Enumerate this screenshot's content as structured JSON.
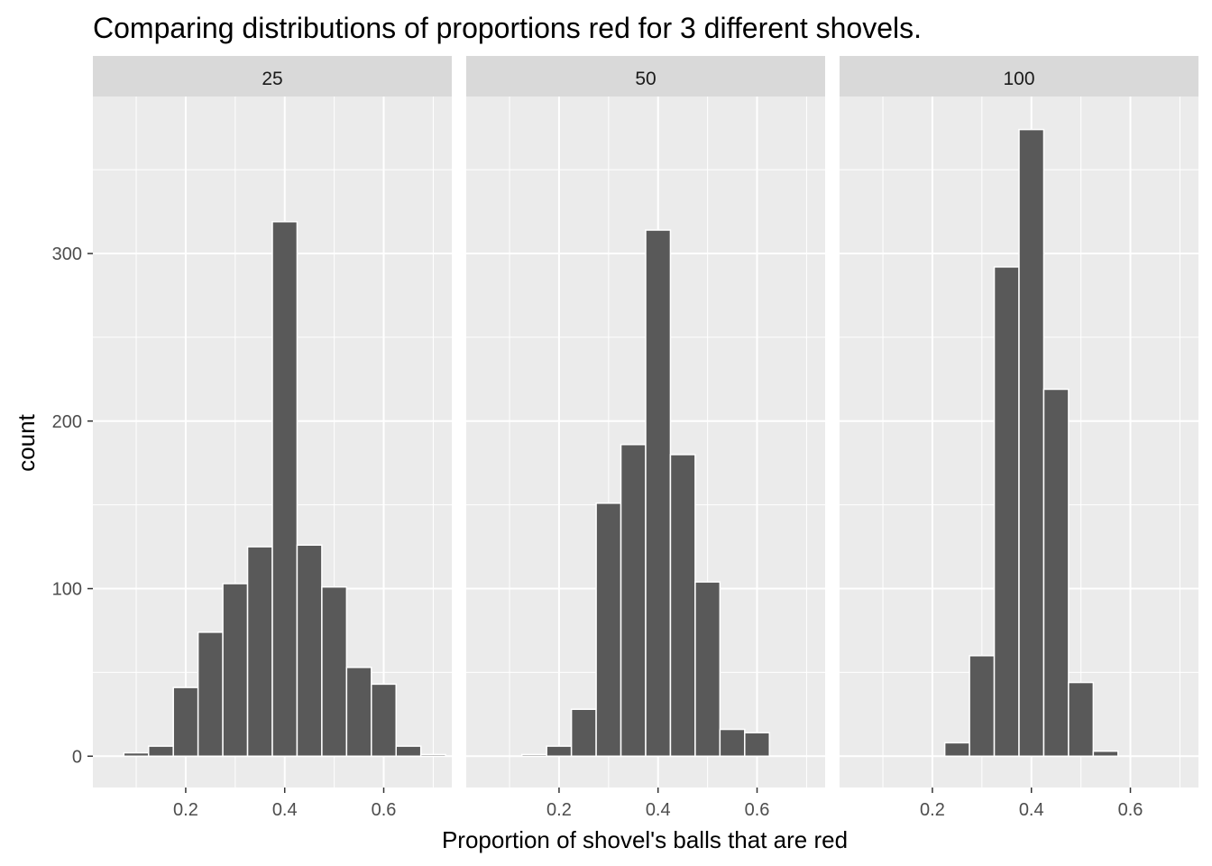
{
  "chart_data": {
    "type": "bar",
    "title": "Comparing distributions of proportions red for 3 different shovels.",
    "xlabel": "Proportion of shovel's balls that are red",
    "ylabel": "count",
    "xlim": [
      0.0125,
      0.7375
    ],
    "ylim": [
      -18.7,
      393.7
    ],
    "x_ticks": [
      "0.2",
      "0.4",
      "0.6"
    ],
    "y_ticks": [
      "0",
      "100",
      "200",
      "300"
    ],
    "bin_width": 0.05,
    "grid": true,
    "legend": "none",
    "colors": {
      "bar_fill": "#595959",
      "bar_outline": "#ffffff",
      "panel_bg": "#ebebeb",
      "strip_bg": "#d9d9d9",
      "grid": "#ffffff"
    },
    "panels": [
      {
        "label": "25",
        "bins": [
          {
            "x": 0.1,
            "count": 2
          },
          {
            "x": 0.15,
            "count": 6
          },
          {
            "x": 0.2,
            "count": 41
          },
          {
            "x": 0.25,
            "count": 74
          },
          {
            "x": 0.3,
            "count": 103
          },
          {
            "x": 0.35,
            "count": 125
          },
          {
            "x": 0.4,
            "count": 319
          },
          {
            "x": 0.45,
            "count": 126
          },
          {
            "x": 0.5,
            "count": 101
          },
          {
            "x": 0.55,
            "count": 53
          },
          {
            "x": 0.6,
            "count": 43
          },
          {
            "x": 0.65,
            "count": 6
          },
          {
            "x": 0.7,
            "count": 1
          }
        ]
      },
      {
        "label": "50",
        "bins": [
          {
            "x": 0.15,
            "count": 1
          },
          {
            "x": 0.2,
            "count": 6
          },
          {
            "x": 0.25,
            "count": 28
          },
          {
            "x": 0.3,
            "count": 151
          },
          {
            "x": 0.35,
            "count": 186
          },
          {
            "x": 0.4,
            "count": 314
          },
          {
            "x": 0.45,
            "count": 180
          },
          {
            "x": 0.5,
            "count": 104
          },
          {
            "x": 0.55,
            "count": 16
          },
          {
            "x": 0.6,
            "count": 14
          }
        ]
      },
      {
        "label": "100",
        "bins": [
          {
            "x": 0.25,
            "count": 8
          },
          {
            "x": 0.3,
            "count": 60
          },
          {
            "x": 0.35,
            "count": 292
          },
          {
            "x": 0.4,
            "count": 374
          },
          {
            "x": 0.45,
            "count": 219
          },
          {
            "x": 0.5,
            "count": 44
          },
          {
            "x": 0.55,
            "count": 3
          }
        ]
      }
    ]
  }
}
